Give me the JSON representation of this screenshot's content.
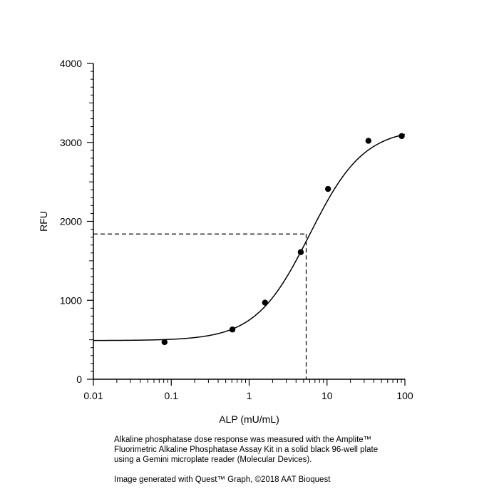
{
  "chart_data": {
    "type": "scatter",
    "xlabel": "ALP (mU/mL)",
    "ylabel": "RFU",
    "xscale": "log",
    "xlim": [
      0.01,
      100
    ],
    "ylim": [
      0,
      4000
    ],
    "x_ticks": [
      0.01,
      0.1,
      1,
      10,
      100
    ],
    "x_tick_labels": [
      "0.01",
      "0.1",
      "1",
      "10",
      "100"
    ],
    "y_ticks": [
      0,
      1000,
      2000,
      3000,
      4000
    ],
    "y_tick_labels": [
      "0",
      "1000",
      "2000",
      "3000",
      "4000"
    ],
    "grid": false,
    "legend": "none",
    "points": [
      {
        "x": 0.082,
        "y": 470
      },
      {
        "x": 0.61,
        "y": 630
      },
      {
        "x": 1.6,
        "y": 970
      },
      {
        "x": 4.6,
        "y": 1610
      },
      {
        "x": 10.3,
        "y": 2410
      },
      {
        "x": 34,
        "y": 3020
      },
      {
        "x": 91,
        "y": 3080
      }
    ],
    "fit_curve": {
      "model": "4-parameter logistic",
      "bottom": 490,
      "top": 3180,
      "ec50": 6.0,
      "hill": 1.25
    },
    "reference_point": {
      "x": 5.4,
      "y": 1840
    }
  },
  "caption": {
    "line1": "Alkaline phosphatase dose response was measured with the Amplite™",
    "line2": "Fluorimetric Alkaline Phosphatase Assay Kit in a solid black 96-well plate",
    "line3": "using a Gemini microplate reader (Molecular Devices).",
    "credit": "Image generated with Quest™ Graph, ©2018 AAT Bioquest"
  }
}
